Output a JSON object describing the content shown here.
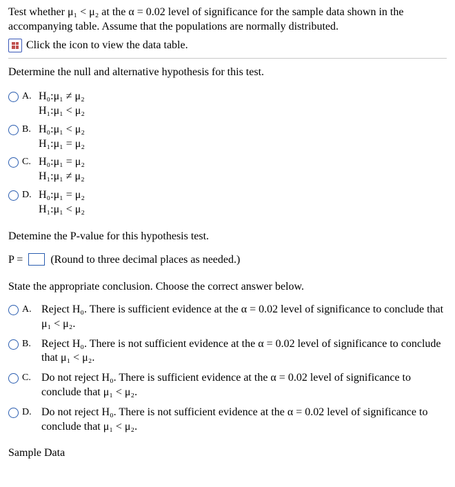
{
  "intro": "Test whether μ₁ < μ₂ at the α = 0.02 level of significance for the sample data shown in the accompanying table. Assume that the populations are normally distributed.",
  "iconLink": "Click the icon to view the data table.",
  "q1_prompt": "Determine the null and alternative hypothesis for this test.",
  "choices1": [
    {
      "letter": "A.",
      "h0": "H₀:μ₁ ≠ μ₂",
      "h1": "H₁:μ₁ < μ₂"
    },
    {
      "letter": "B.",
      "h0": "H₀:μ₁ < μ₂",
      "h1": "H₁:μ₁ = μ₂"
    },
    {
      "letter": "C.",
      "h0": "H₀:μ₁ = μ₂",
      "h1": "H₁:μ₁ ≠ μ₂"
    },
    {
      "letter": "D.",
      "h0": "H₀:μ₁ = μ₂",
      "h1": "H₁:μ₁ < μ₂"
    }
  ],
  "q2_prompt": "Detemine the P-value for this hypothesis test.",
  "p_prefix": "P =",
  "p_hint": "(Round to three decimal places as needed.)",
  "q3_prompt": "State the appropriate conclusion. Choose the correct answer below.",
  "choices2": [
    {
      "letter": "A.",
      "text": "Reject H₀. There is sufficient evidence at the α = 0.02 level of significance to conclude that μ₁ < μ₂."
    },
    {
      "letter": "B.",
      "text": "Reject H₀. There is not sufficient evidence at the α = 0.02 level of significance to conclude that μ₁ < μ₂."
    },
    {
      "letter": "C.",
      "text": "Do not reject H₀. There is sufficient evidence at the α = 0.02 level of significance to conclude that μ₁ < μ₂."
    },
    {
      "letter": "D.",
      "text": "Do not reject H₀. There is not sufficient evidence at the α = 0.02 level of significance to conclude that μ₁ < μ₂."
    }
  ],
  "sample_heading": "Sample Data",
  "colors": {
    "radio_border": "#2a5db0",
    "input_border": "#2a5db0",
    "divider": "#c8c8c8"
  }
}
